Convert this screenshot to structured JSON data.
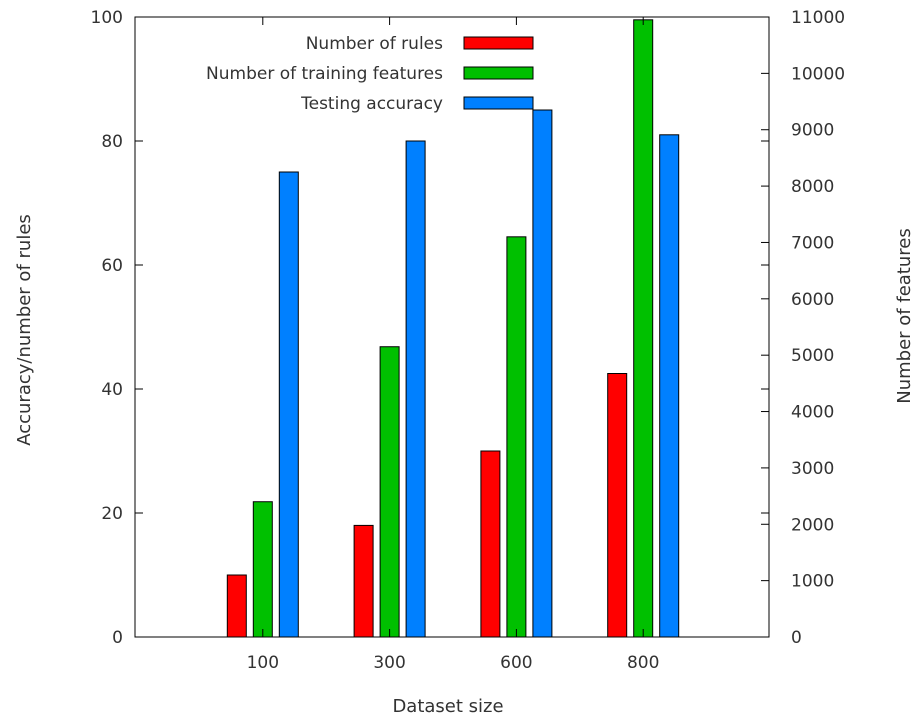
{
  "chart_data": {
    "type": "bar",
    "xlabel": "Dataset size",
    "ylabel": "Accuracy/number of rules",
    "y2label": "Number of features",
    "categories": [
      "100",
      "300",
      "600",
      "800"
    ],
    "ylim": [
      0,
      100
    ],
    "y2lim": [
      0,
      11000
    ],
    "yticks": [
      "0",
      "20",
      "40",
      "60",
      "80",
      "100"
    ],
    "y2ticks": [
      "0",
      "1000",
      "2000",
      "3000",
      "4000",
      "5000",
      "6000",
      "7000",
      "8000",
      "9000",
      "10000",
      "11000"
    ],
    "legend_position": "top-center",
    "grid": false,
    "series": [
      {
        "name": "Number of rules",
        "axis": "left",
        "color": "#ff0000",
        "values": [
          10,
          18,
          30,
          42.5
        ]
      },
      {
        "name": "Number of training features",
        "axis": "right",
        "color": "#00c000",
        "values": [
          2400,
          5150,
          7100,
          10950
        ]
      },
      {
        "name": "Testing accuracy",
        "axis": "left",
        "color": "#0080ff",
        "values": [
          75,
          80,
          85,
          81
        ]
      }
    ]
  }
}
